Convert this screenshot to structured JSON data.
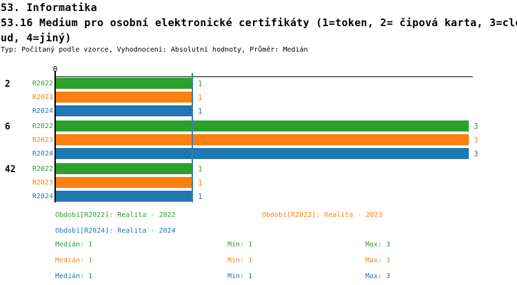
{
  "header": {
    "section_title": "53. Informatika",
    "question_title_lines": [
      "53.16 Medium pro osobní elektronické certifikáty (1=token, 2= čipová karta, 3=clo",
      "ud, 4=jiný)"
    ],
    "question_title_full": "53.16 Medium pro osobní elektronické certifikáty (1=token, 2= čipová karta, 3=cloud, 4=jiný)",
    "meta": "Typ: Počítaný podle vzorce, Vyhodnocení: Absolutní hodnoty, Průměr: Medián"
  },
  "colors": {
    "green": "#2ca02c",
    "orange": "#ff7f0e",
    "blue": "#1f77b4",
    "median_line": "#3a7fb5",
    "axis": "#000000"
  },
  "chart_data": {
    "type": "bar",
    "orientation": "horizontal",
    "title": "",
    "x_axis": {
      "tick_label": "0",
      "range": [
        0,
        3.35
      ],
      "median_reference_line_at": 1,
      "grid": false
    },
    "categories": [
      "2",
      "6",
      "42"
    ],
    "series": [
      {
        "name": "R2022",
        "color": "#2ca02c",
        "values": [
          1,
          3,
          1
        ]
      },
      {
        "name": "R2023",
        "color": "#ff7f0e",
        "values": [
          1,
          3,
          1
        ]
      },
      {
        "name": "R2024",
        "color": "#1f77b4",
        "values": [
          1,
          3,
          1
        ]
      }
    ],
    "value_labels_shown": true,
    "legend_position": "bottom"
  },
  "legend": {
    "items": [
      {
        "text": "Období[R2022]: Realita - 2022",
        "color": "#2ca02c"
      },
      {
        "text": "Období[R2023]: Realita - 2023",
        "color": "#ff7f0e"
      },
      {
        "text": "Období[R2024]: Realita - 2024",
        "color": "#1f77b4"
      }
    ]
  },
  "stats": {
    "rows": [
      {
        "median": "Medián: 1",
        "min": "Min: 1",
        "max": "Max: 3",
        "color": "#2ca02c"
      },
      {
        "median": "Medián: 1",
        "min": "Min: 1",
        "max": "Max: 3",
        "color": "#ff7f0e"
      },
      {
        "median": "Medián: 1",
        "min": "Min: 1",
        "max": "Max: 3",
        "color": "#1f77b4"
      }
    ]
  }
}
